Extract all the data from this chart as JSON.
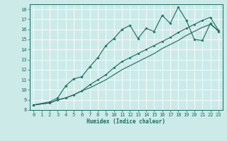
{
  "xlabel": "Humidex (Indice chaleur)",
  "bg_color": "#cceae8",
  "grid_color": "#ffffff",
  "line_color": "#1a6b5a",
  "xlim": [
    -0.5,
    23.5
  ],
  "ylim": [
    8,
    18.5
  ],
  "xticks": [
    0,
    1,
    2,
    3,
    4,
    5,
    6,
    7,
    8,
    9,
    10,
    11,
    12,
    13,
    14,
    15,
    16,
    17,
    18,
    19,
    20,
    21,
    22,
    23
  ],
  "yticks": [
    8,
    9,
    10,
    11,
    12,
    13,
    14,
    15,
    16,
    17,
    18
  ],
  "line1_x": [
    0,
    2,
    3,
    4,
    5,
    6,
    7,
    8,
    9,
    10,
    11,
    12,
    13,
    14,
    15,
    16,
    17,
    18,
    19,
    20,
    21,
    22,
    23
  ],
  "line1_y": [
    8.5,
    8.8,
    9.2,
    10.4,
    11.1,
    11.3,
    12.3,
    13.2,
    14.4,
    15.1,
    16.0,
    16.4,
    15.1,
    16.1,
    15.8,
    17.4,
    16.6,
    18.2,
    16.9,
    15.0,
    14.9,
    16.6,
    15.8
  ],
  "line2_x": [
    0,
    2,
    3,
    4,
    5,
    6,
    7,
    8,
    9,
    10,
    11,
    12,
    13,
    14,
    15,
    16,
    17,
    18,
    19,
    20,
    21,
    22,
    23
  ],
  "line2_y": [
    8.5,
    8.7,
    9.0,
    9.2,
    9.5,
    9.9,
    10.5,
    11.0,
    11.5,
    12.2,
    12.8,
    13.2,
    13.6,
    14.0,
    14.4,
    14.8,
    15.2,
    15.7,
    16.1,
    16.5,
    16.9,
    17.2,
    15.9
  ],
  "line3_x": [
    0,
    2,
    3,
    4,
    5,
    6,
    7,
    8,
    9,
    10,
    11,
    12,
    13,
    14,
    15,
    16,
    17,
    18,
    19,
    20,
    21,
    22,
    23
  ],
  "line3_y": [
    8.5,
    8.7,
    9.0,
    9.2,
    9.5,
    9.9,
    10.2,
    10.6,
    11.0,
    11.5,
    12.0,
    12.4,
    12.8,
    13.2,
    13.6,
    14.1,
    14.5,
    14.9,
    15.4,
    15.8,
    16.2,
    16.5,
    15.9
  ]
}
